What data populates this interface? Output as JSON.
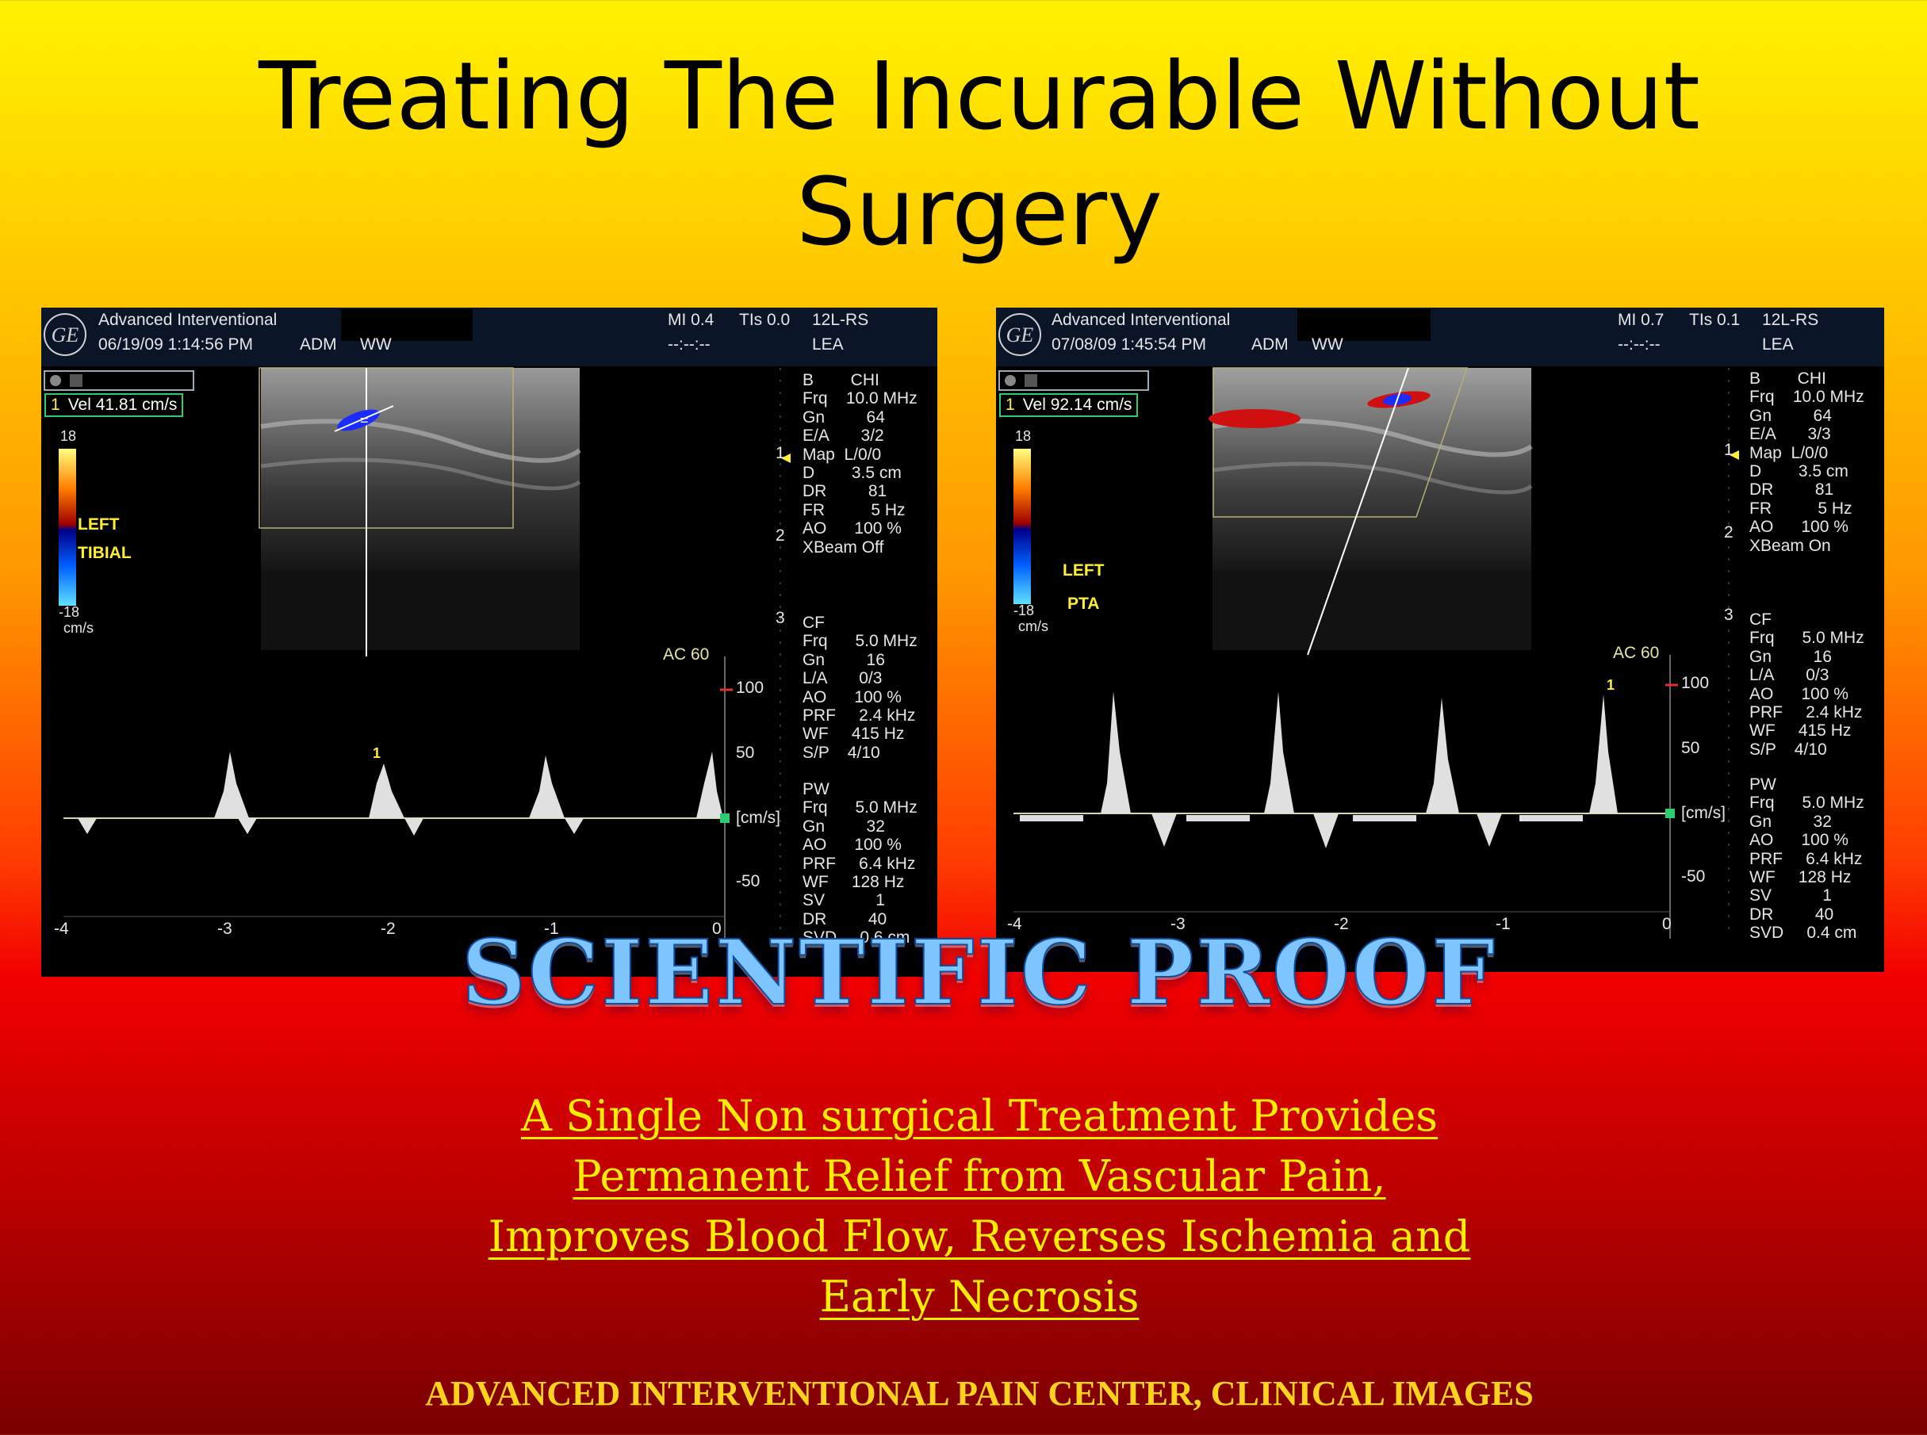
{
  "slide": {
    "title_line1": "Treating The Incurable Without",
    "title_line2": "Surgery",
    "scientific_proof": "SCIENTIFIC PROOF",
    "subtitle_lines": [
      "A Single Non surgical Treatment Provides",
      "Permanent Relief from Vascular Pain,",
      "Improves Blood Flow, Reverses Ischemia and",
      "Early Necrosis"
    ],
    "footer": "ADVANCED INTERVENTIONAL PAIN CENTER, CLINICAL IMAGES"
  },
  "left": {
    "institution": "Advanced Interventional",
    "datetime": "06/19/09 1:14:56 PM",
    "adm": "ADM",
    "ww": "WW",
    "mi": "MI 0.4",
    "tis": "TIs 0.0",
    "probe": "12L-RS",
    "lea": "LEA",
    "clock": "--:--:--",
    "vel_num": "1",
    "vel": "Vel  41.81 cm/s",
    "vessel1": "LEFT",
    "vessel2": "TIBIAL",
    "scale_top": "18",
    "scale_bottom": "-18",
    "scale_unit": "cm/s",
    "ac": "AC 60",
    "marker": "1",
    "b_params": "B        CHI\nFrq    10.0 MHz\nGn         64\nE/A       3/2\nMap  L/0/0\nD        3.5 cm\nDR         81\nFR          5 Hz\nAO      100 %\nXBeam Off",
    "cf_params": "CF\nFrq      5.0 MHz\nGn         16\nL/A       0/3\nAO      100 %\nPRF     2.4 kHz\nWF     415 Hz\nS/P    4/10",
    "pw_params": "PW\nFrq      5.0 MHz\nGn         32\nAO      100 %\nPRF     6.4 kHz\nWF     128 Hz\nSV           1\nDR         40\nSVD     0.6 cm",
    "depth_ticks": [
      "1",
      "2",
      "3"
    ],
    "vel_ticks": [
      "100",
      "50",
      "[cm/s]",
      "-50"
    ],
    "time_ticks": [
      "-4",
      "-3",
      "-2",
      "-1",
      "0"
    ]
  },
  "right": {
    "institution": "Advanced Interventional",
    "datetime": "07/08/09 1:45:54 PM",
    "adm": "ADM",
    "ww": "WW",
    "mi": "MI 0.7",
    "tis": "TIs 0.1",
    "probe": "12L-RS",
    "lea": "LEA",
    "clock": "--:--:--",
    "vel_num": "1",
    "vel": "Vel  92.14 cm/s",
    "vessel1": "LEFT",
    "vessel2": "PTA",
    "scale_top": "18",
    "scale_bottom": "-18",
    "scale_unit": "cm/s",
    "ac": "AC 60",
    "marker": "1",
    "b_params": "B        CHI\nFrq    10.0 MHz\nGn         64\nE/A       3/3\nMap  L/0/0\nD        3.5 cm\nDR         81\nFR          5 Hz\nAO      100 %\nXBeam On",
    "cf_params": "CF\nFrq      5.0 MHz\nGn         16\nL/A       0/3\nAO      100 %\nPRF     2.4 kHz\nWF     415 Hz\nS/P    4/10",
    "pw_params": "PW\nFrq      5.0 MHz\nGn         32\nAO      100 %\nPRF     6.4 kHz\nWF     128 Hz\nSV           1\nDR         40\nSVD     0.4 cm",
    "depth_ticks": [
      "1",
      "2",
      "3"
    ],
    "vel_ticks": [
      "100",
      "50",
      "[cm/s]",
      "-50"
    ],
    "time_ticks": [
      "-4",
      "-3",
      "-2",
      "-1",
      "0"
    ]
  },
  "colors": {
    "accent_yellow": "#ffee33",
    "vel_box": "#2ecc71",
    "proof_blue": "#7ec4ff"
  },
  "icons": {
    "logo": "ge-logo-icon"
  }
}
